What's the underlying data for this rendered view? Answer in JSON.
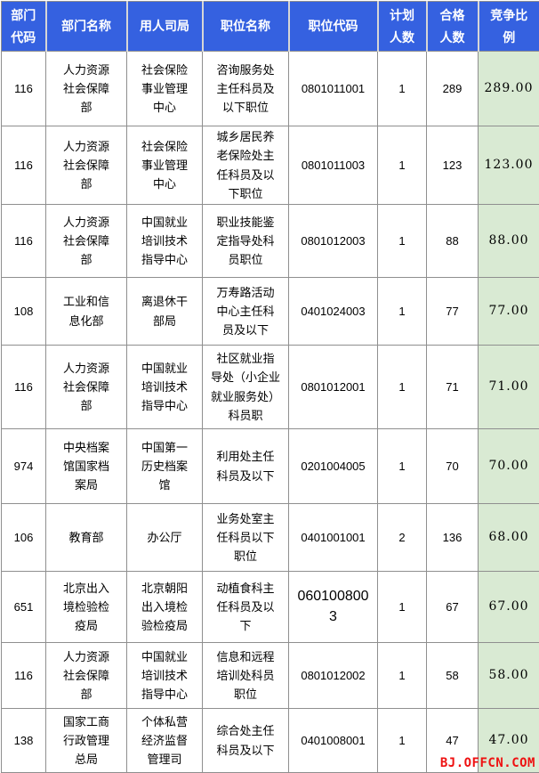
{
  "colors": {
    "header_bg": "#3561e0",
    "header_text": "#ffffff",
    "ratio_col_bg": "#d9ead3",
    "grid_border": "#8f8f8f",
    "watermark_red": "#ee1111"
  },
  "watermark": "BJ.OFFCN.COM",
  "table": {
    "columns": [
      {
        "key": "dept_code",
        "label": "部门\n代码"
      },
      {
        "key": "dept_name",
        "label": "部门名称"
      },
      {
        "key": "bureau",
        "label": "用人司局"
      },
      {
        "key": "position_name",
        "label": "职位名称"
      },
      {
        "key": "position_code",
        "label": "职位代码"
      },
      {
        "key": "planned",
        "label": "计划\n人数"
      },
      {
        "key": "qualified",
        "label": "合格\n人数"
      },
      {
        "key": "ratio",
        "label": "竞争比\n例"
      }
    ],
    "rows": [
      {
        "dept_code": "116",
        "dept_name": "人力资源\n社会保障\n部",
        "bureau": "社会保险\n事业管理\n中心",
        "position_name": "咨询服务处\n主任科员及\n以下职位",
        "position_code": "0801011001",
        "planned": "1",
        "qualified": "289",
        "ratio": "289.00"
      },
      {
        "dept_code": "116",
        "dept_name": "人力资源\n社会保障\n部",
        "bureau": "社会保险\n事业管理\n中心",
        "position_name": "城乡居民养\n老保险处主\n任科员及以\n下职位",
        "position_code": "0801011003",
        "planned": "1",
        "qualified": "123",
        "ratio": "123.00"
      },
      {
        "dept_code": "116",
        "dept_name": "人力资源\n社会保障\n部",
        "bureau": "中国就业\n培训技术\n指导中心",
        "position_name": "职业技能鉴\n定指导处科\n员职位",
        "position_code": "0801012003",
        "planned": "1",
        "qualified": "88",
        "ratio": "88.00"
      },
      {
        "dept_code": "108",
        "dept_name": "工业和信\n息化部",
        "bureau": "离退休干\n部局",
        "position_name": "万寿路活动\n中心主任科\n员及以下",
        "position_code": "0401024003",
        "planned": "1",
        "qualified": "77",
        "ratio": "77.00"
      },
      {
        "dept_code": "116",
        "dept_name": "人力资源\n社会保障\n部",
        "bureau": "中国就业\n培训技术\n指导中心",
        "position_name": "社区就业指\n导处（小企业\n就业服务处）\n科员职",
        "position_code": "0801012001",
        "planned": "1",
        "qualified": "71",
        "ratio": "71.00"
      },
      {
        "dept_code": "974",
        "dept_name": "中央档案\n馆国家档\n案局",
        "bureau": "中国第一\n历史档案\n馆",
        "position_name": "利用处主任\n科员及以下",
        "position_code": "0201004005",
        "planned": "1",
        "qualified": "70",
        "ratio": "70.00"
      },
      {
        "dept_code": "106",
        "dept_name": "教育部",
        "bureau": "办公厅",
        "position_name": "业务处室主\n任科员以下\n职位",
        "position_code": "0401001001",
        "planned": "2",
        "qualified": "136",
        "ratio": "68.00"
      },
      {
        "dept_code": "651",
        "dept_name": "北京出入\n境检验检\n疫局",
        "bureau": "北京朝阳\n出入境检\n验检疫局",
        "position_name": "动植食科主\n任科员及以\n下",
        "position_code": "060100800\n3",
        "planned": "1",
        "qualified": "67",
        "ratio": "67.00"
      },
      {
        "dept_code": "116",
        "dept_name": "人力资源\n社会保障\n部",
        "bureau": "中国就业\n培训技术\n指导中心",
        "position_name": "信息和远程\n培训处科员\n职位",
        "position_code": "0801012002",
        "planned": "1",
        "qualified": "58",
        "ratio": "58.00"
      },
      {
        "dept_code": "138",
        "dept_name": "国家工商\n行政管理\n总局",
        "bureau": "个体私营\n经济监督\n管理司",
        "position_name": "综合处主任\n科员及以下",
        "position_code": "0401008001",
        "planned": "1",
        "qualified": "47",
        "ratio": "47.00"
      }
    ]
  }
}
